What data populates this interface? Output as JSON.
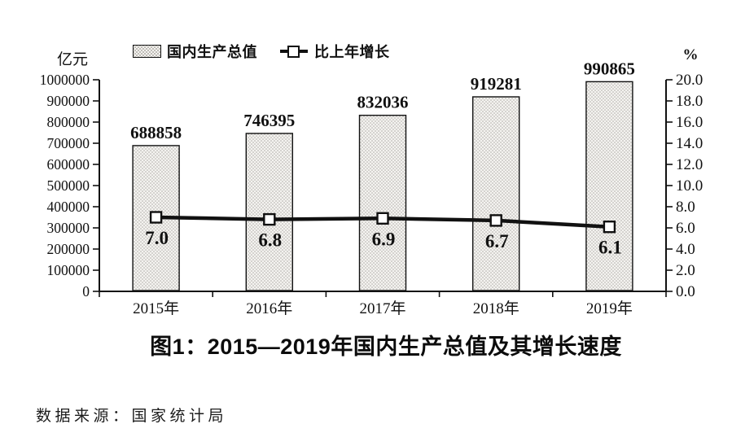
{
  "chart_data": {
    "type": "bar",
    "title": "图1：2015—2019年国内生产总值及其增长速度",
    "source": "数据来源：国家统计局",
    "categories": [
      "2015年",
      "2016年",
      "2017年",
      "2018年",
      "2019年"
    ],
    "series": [
      {
        "name": "国内生产总值",
        "type": "bar",
        "axis": "left",
        "values": [
          688858,
          746395,
          832036,
          919281,
          990865
        ],
        "data_labels": [
          "688858",
          "746395",
          "832036",
          "919281",
          "990865"
        ]
      },
      {
        "name": "比上年增长",
        "type": "line",
        "axis": "right",
        "values": [
          7.0,
          6.8,
          6.9,
          6.7,
          6.1
        ],
        "data_labels": [
          "7.0",
          "6.8",
          "6.9",
          "6.7",
          "6.1"
        ]
      }
    ],
    "left_axis": {
      "label": "亿元",
      "range": [
        0,
        1000000
      ],
      "step": 100000,
      "tick_labels": [
        "0",
        "100000",
        "200000",
        "300000",
        "400000",
        "500000",
        "600000",
        "700000",
        "800000",
        "900000",
        "1000000"
      ]
    },
    "right_axis": {
      "label": "%",
      "range": [
        0,
        20
      ],
      "step": 2,
      "tick_labels": [
        "0.0",
        "2.0",
        "4.0",
        "6.0",
        "8.0",
        "10.0",
        "12.0",
        "14.0",
        "16.0",
        "18.0",
        "20.0"
      ]
    },
    "legend_position": "top",
    "grid": false,
    "colors": {
      "ink": "#111111",
      "bar_fill": "#f4f3f0",
      "bar_dot": "#aeaba6",
      "bar_border": "#111111",
      "line": "#111111",
      "marker_fill": "#ffffff"
    }
  }
}
